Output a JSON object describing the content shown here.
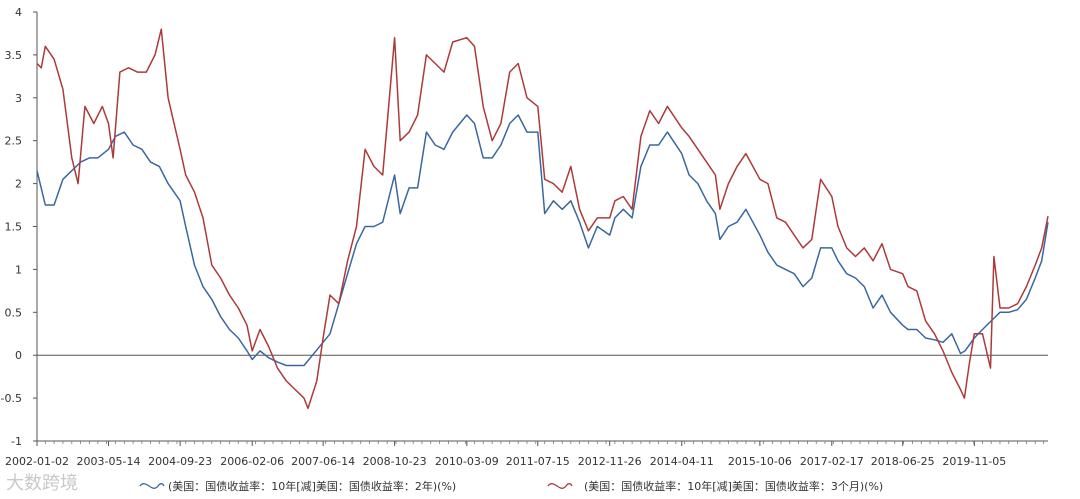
{
  "chart_data": {
    "type": "line",
    "title": "",
    "xlabel": "",
    "ylabel": "",
    "x_range": [
      "2002-01-02",
      "2021-03-31"
    ],
    "ylim": [
      -1,
      4
    ],
    "yticks": [
      -1,
      -0.5,
      0,
      0.5,
      1,
      1.5,
      2,
      2.5,
      3,
      3.5,
      4
    ],
    "ytick_labels": [
      "-1",
      "-0.5",
      "0",
      "0.5",
      "1",
      "1.5",
      "2",
      "2.5",
      "3",
      "3.5",
      "4"
    ],
    "xticks": [
      "2002-01-02",
      "2003-05-14",
      "2004-09-23",
      "2006-02-06",
      "2007-06-14",
      "2008-10-23",
      "2010-03-09",
      "2011-07-15",
      "2012-11-26",
      "2014-04-11",
      "2015-10-06",
      "2017-02-17",
      "2018-06-25",
      "2019-11-05"
    ],
    "grid": false,
    "zero_line": true,
    "legend_position": "bottom",
    "series": [
      {
        "name": "(美国：国债收益率：10年[减]美国：国债收益率：2年)(%)",
        "color": "#3a67a0",
        "points": [
          [
            "2002-01-02",
            2.15
          ],
          [
            "2002-03-01",
            1.75
          ],
          [
            "2002-05-01",
            1.75
          ],
          [
            "2002-07-01",
            2.05
          ],
          [
            "2002-09-01",
            2.15
          ],
          [
            "2002-11-01",
            2.25
          ],
          [
            "2003-01-01",
            2.3
          ],
          [
            "2003-03-01",
            2.3
          ],
          [
            "2003-05-14",
            2.4
          ],
          [
            "2003-07-01",
            2.55
          ],
          [
            "2003-09-01",
            2.6
          ],
          [
            "2003-11-01",
            2.45
          ],
          [
            "2004-01-01",
            2.4
          ],
          [
            "2004-03-01",
            2.25
          ],
          [
            "2004-05-01",
            2.2
          ],
          [
            "2004-07-01",
            2.0
          ],
          [
            "2004-09-23",
            1.8
          ],
          [
            "2004-11-01",
            1.5
          ],
          [
            "2005-01-01",
            1.05
          ],
          [
            "2005-03-01",
            0.8
          ],
          [
            "2005-05-01",
            0.65
          ],
          [
            "2005-07-01",
            0.45
          ],
          [
            "2005-09-01",
            0.3
          ],
          [
            "2005-11-01",
            0.2
          ],
          [
            "2006-01-01",
            0.05
          ],
          [
            "2006-02-06",
            -0.05
          ],
          [
            "2006-04-01",
            0.05
          ],
          [
            "2006-06-01",
            -0.03
          ],
          [
            "2006-08-01",
            -0.08
          ],
          [
            "2006-10-01",
            -0.12
          ],
          [
            "2006-12-01",
            -0.12
          ],
          [
            "2007-02-01",
            -0.12
          ],
          [
            "2007-04-01",
            0.0
          ],
          [
            "2007-06-14",
            0.15
          ],
          [
            "2007-08-01",
            0.25
          ],
          [
            "2007-10-01",
            0.6
          ],
          [
            "2007-12-01",
            0.95
          ],
          [
            "2008-02-01",
            1.3
          ],
          [
            "2008-04-01",
            1.5
          ],
          [
            "2008-06-01",
            1.5
          ],
          [
            "2008-08-01",
            1.55
          ],
          [
            "2008-10-23",
            2.1
          ],
          [
            "2008-12-01",
            1.65
          ],
          [
            "2009-02-01",
            1.95
          ],
          [
            "2009-04-01",
            1.95
          ],
          [
            "2009-06-01",
            2.6
          ],
          [
            "2009-08-01",
            2.45
          ],
          [
            "2009-10-01",
            2.4
          ],
          [
            "2009-12-01",
            2.6
          ],
          [
            "2010-03-09",
            2.8
          ],
          [
            "2010-05-01",
            2.7
          ],
          [
            "2010-07-01",
            2.3
          ],
          [
            "2010-09-01",
            2.3
          ],
          [
            "2010-11-01",
            2.45
          ],
          [
            "2011-01-01",
            2.7
          ],
          [
            "2011-03-01",
            2.8
          ],
          [
            "2011-05-01",
            2.6
          ],
          [
            "2011-07-15",
            2.6
          ],
          [
            "2011-09-01",
            1.65
          ],
          [
            "2011-11-01",
            1.8
          ],
          [
            "2012-01-01",
            1.7
          ],
          [
            "2012-03-01",
            1.8
          ],
          [
            "2012-05-01",
            1.55
          ],
          [
            "2012-07-01",
            1.25
          ],
          [
            "2012-09-01",
            1.5
          ],
          [
            "2012-11-26",
            1.4
          ],
          [
            "2013-01-01",
            1.6
          ],
          [
            "2013-03-01",
            1.7
          ],
          [
            "2013-05-01",
            1.6
          ],
          [
            "2013-07-01",
            2.2
          ],
          [
            "2013-09-01",
            2.45
          ],
          [
            "2013-11-01",
            2.45
          ],
          [
            "2014-01-01",
            2.6
          ],
          [
            "2014-04-11",
            2.35
          ],
          [
            "2014-06-01",
            2.1
          ],
          [
            "2014-08-01",
            2.0
          ],
          [
            "2014-10-01",
            1.8
          ],
          [
            "2014-12-01",
            1.65
          ],
          [
            "2015-01-01",
            1.35
          ],
          [
            "2015-03-01",
            1.5
          ],
          [
            "2015-05-01",
            1.55
          ],
          [
            "2015-07-01",
            1.7
          ],
          [
            "2015-10-06",
            1.4
          ],
          [
            "2015-12-01",
            1.2
          ],
          [
            "2016-02-01",
            1.05
          ],
          [
            "2016-04-01",
            1.0
          ],
          [
            "2016-06-01",
            0.95
          ],
          [
            "2016-08-01",
            0.8
          ],
          [
            "2016-10-01",
            0.9
          ],
          [
            "2016-12-01",
            1.25
          ],
          [
            "2017-02-17",
            1.25
          ],
          [
            "2017-04-01",
            1.1
          ],
          [
            "2017-06-01",
            0.95
          ],
          [
            "2017-08-01",
            0.9
          ],
          [
            "2017-10-01",
            0.8
          ],
          [
            "2017-12-01",
            0.55
          ],
          [
            "2018-02-01",
            0.7
          ],
          [
            "2018-04-01",
            0.5
          ],
          [
            "2018-06-25",
            0.35
          ],
          [
            "2018-08-01",
            0.3
          ],
          [
            "2018-10-01",
            0.3
          ],
          [
            "2018-12-01",
            0.2
          ],
          [
            "2019-02-01",
            0.18
          ],
          [
            "2019-04-01",
            0.15
          ],
          [
            "2019-06-01",
            0.25
          ],
          [
            "2019-08-01",
            0.02
          ],
          [
            "2019-09-01",
            0.05
          ],
          [
            "2019-11-05",
            0.2
          ],
          [
            "2020-01-01",
            0.3
          ],
          [
            "2020-03-01",
            0.4
          ],
          [
            "2020-05-01",
            0.5
          ],
          [
            "2020-07-01",
            0.5
          ],
          [
            "2020-09-01",
            0.53
          ],
          [
            "2020-11-01",
            0.65
          ],
          [
            "2021-01-01",
            0.9
          ],
          [
            "2021-02-15",
            1.1
          ],
          [
            "2021-03-31",
            1.55
          ]
        ]
      },
      {
        "name": "(美国：国债收益率：10年[减]美国：国债收益率：3个月)(%)",
        "color": "#ad3a3a",
        "points": [
          [
            "2002-01-02",
            3.4
          ],
          [
            "2002-02-01",
            3.35
          ],
          [
            "2002-03-01",
            3.6
          ],
          [
            "2002-05-01",
            3.45
          ],
          [
            "2002-07-01",
            3.1
          ],
          [
            "2002-09-01",
            2.3
          ],
          [
            "2002-10-15",
            2.0
          ],
          [
            "2002-12-01",
            2.9
          ],
          [
            "2003-02-01",
            2.7
          ],
          [
            "2003-04-01",
            2.9
          ],
          [
            "2003-05-14",
            2.7
          ],
          [
            "2003-06-15",
            2.3
          ],
          [
            "2003-08-01",
            3.3
          ],
          [
            "2003-10-01",
            3.35
          ],
          [
            "2003-12-01",
            3.3
          ],
          [
            "2004-02-01",
            3.3
          ],
          [
            "2004-04-01",
            3.5
          ],
          [
            "2004-05-15",
            3.8
          ],
          [
            "2004-07-01",
            3.0
          ],
          [
            "2004-09-23",
            2.4
          ],
          [
            "2004-11-01",
            2.1
          ],
          [
            "2005-01-01",
            1.9
          ],
          [
            "2005-03-01",
            1.6
          ],
          [
            "2005-05-01",
            1.05
          ],
          [
            "2005-07-01",
            0.9
          ],
          [
            "2005-09-01",
            0.7
          ],
          [
            "2005-11-01",
            0.55
          ],
          [
            "2006-01-01",
            0.35
          ],
          [
            "2006-02-06",
            0.05
          ],
          [
            "2006-04-01",
            0.3
          ],
          [
            "2006-06-01",
            0.1
          ],
          [
            "2006-08-01",
            -0.15
          ],
          [
            "2006-10-01",
            -0.3
          ],
          [
            "2006-12-01",
            -0.4
          ],
          [
            "2007-02-01",
            -0.5
          ],
          [
            "2007-03-01",
            -0.62
          ],
          [
            "2007-05-01",
            -0.3
          ],
          [
            "2007-06-14",
            0.2
          ],
          [
            "2007-08-01",
            0.7
          ],
          [
            "2007-10-01",
            0.6
          ],
          [
            "2007-12-01",
            1.1
          ],
          [
            "2008-02-01",
            1.5
          ],
          [
            "2008-04-01",
            2.4
          ],
          [
            "2008-06-01",
            2.2
          ],
          [
            "2008-08-01",
            2.1
          ],
          [
            "2008-10-23",
            3.7
          ],
          [
            "2008-12-01",
            2.5
          ],
          [
            "2009-02-01",
            2.6
          ],
          [
            "2009-04-01",
            2.8
          ],
          [
            "2009-06-01",
            3.5
          ],
          [
            "2009-08-01",
            3.4
          ],
          [
            "2009-10-01",
            3.3
          ],
          [
            "2009-12-01",
            3.65
          ],
          [
            "2010-03-09",
            3.7
          ],
          [
            "2010-05-01",
            3.6
          ],
          [
            "2010-07-01",
            2.9
          ],
          [
            "2010-09-01",
            2.5
          ],
          [
            "2010-11-01",
            2.7
          ],
          [
            "2011-01-01",
            3.3
          ],
          [
            "2011-03-01",
            3.4
          ],
          [
            "2011-05-01",
            3.0
          ],
          [
            "2011-07-15",
            2.9
          ],
          [
            "2011-09-01",
            2.05
          ],
          [
            "2011-11-01",
            2.0
          ],
          [
            "2012-01-01",
            1.9
          ],
          [
            "2012-03-01",
            2.2
          ],
          [
            "2012-05-01",
            1.7
          ],
          [
            "2012-07-01",
            1.45
          ],
          [
            "2012-09-01",
            1.6
          ],
          [
            "2012-11-26",
            1.6
          ],
          [
            "2013-01-01",
            1.8
          ],
          [
            "2013-03-01",
            1.85
          ],
          [
            "2013-05-01",
            1.7
          ],
          [
            "2013-07-01",
            2.55
          ],
          [
            "2013-09-01",
            2.85
          ],
          [
            "2013-11-01",
            2.7
          ],
          [
            "2014-01-01",
            2.9
          ],
          [
            "2014-04-11",
            2.65
          ],
          [
            "2014-06-01",
            2.55
          ],
          [
            "2014-08-01",
            2.4
          ],
          [
            "2014-10-01",
            2.25
          ],
          [
            "2014-12-01",
            2.1
          ],
          [
            "2015-01-01",
            1.7
          ],
          [
            "2015-03-01",
            2.0
          ],
          [
            "2015-05-01",
            2.2
          ],
          [
            "2015-07-01",
            2.35
          ],
          [
            "2015-10-06",
            2.05
          ],
          [
            "2015-12-01",
            2.0
          ],
          [
            "2016-02-01",
            1.6
          ],
          [
            "2016-04-01",
            1.55
          ],
          [
            "2016-06-01",
            1.4
          ],
          [
            "2016-08-01",
            1.25
          ],
          [
            "2016-10-01",
            1.35
          ],
          [
            "2016-12-01",
            2.05
          ],
          [
            "2017-02-17",
            1.85
          ],
          [
            "2017-04-01",
            1.5
          ],
          [
            "2017-06-01",
            1.25
          ],
          [
            "2017-08-01",
            1.15
          ],
          [
            "2017-10-01",
            1.25
          ],
          [
            "2017-12-01",
            1.1
          ],
          [
            "2018-02-01",
            1.3
          ],
          [
            "2018-04-01",
            1.0
          ],
          [
            "2018-06-25",
            0.95
          ],
          [
            "2018-08-01",
            0.8
          ],
          [
            "2018-10-01",
            0.75
          ],
          [
            "2018-12-01",
            0.4
          ],
          [
            "2019-02-01",
            0.25
          ],
          [
            "2019-04-01",
            0.05
          ],
          [
            "2019-06-01",
            -0.2
          ],
          [
            "2019-08-01",
            -0.4
          ],
          [
            "2019-08-28",
            -0.5
          ],
          [
            "2019-10-01",
            -0.1
          ],
          [
            "2019-11-05",
            0.25
          ],
          [
            "2020-01-01",
            0.25
          ],
          [
            "2020-02-25",
            -0.15
          ],
          [
            "2020-03-20",
            1.15
          ],
          [
            "2020-05-01",
            0.55
          ],
          [
            "2020-07-01",
            0.55
          ],
          [
            "2020-09-01",
            0.6
          ],
          [
            "2020-11-01",
            0.8
          ],
          [
            "2021-01-01",
            1.05
          ],
          [
            "2021-02-15",
            1.25
          ],
          [
            "2021-03-31",
            1.62
          ]
        ]
      }
    ]
  },
  "watermark": "大数跨境"
}
